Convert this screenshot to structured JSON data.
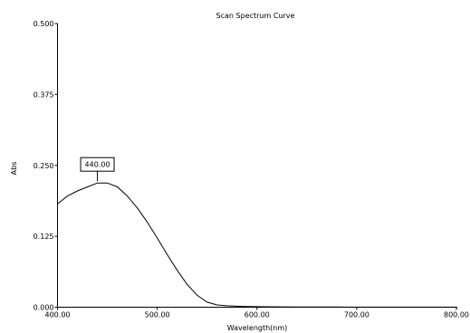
{
  "chart_data": {
    "type": "line",
    "title": "Scan Spectrum Curve",
    "xlabel": "Wavelength(nm)",
    "ylabel": "Abs",
    "xlim": [
      400,
      800
    ],
    "ylim": [
      0,
      0.5
    ],
    "x_ticks": [
      "400.00",
      "500.00",
      "600.00",
      "700.00",
      "800.00"
    ],
    "y_ticks": [
      "0.000",
      "0.125",
      "0.250",
      "0.375",
      "0.500"
    ],
    "grid": false,
    "annotation": {
      "label": "440.00",
      "x": 440,
      "y": 0.219
    },
    "series": [
      {
        "x": [
          400,
          410,
          420,
          430,
          440,
          450,
          460,
          470,
          480,
          490,
          500,
          510,
          520,
          530,
          540,
          550,
          560,
          570,
          580,
          590,
          600,
          620,
          640,
          660,
          680,
          700,
          720,
          740,
          760,
          780,
          800
        ],
        "y": [
          0.182,
          0.196,
          0.205,
          0.212,
          0.219,
          0.219,
          0.212,
          0.196,
          0.175,
          0.15,
          0.122,
          0.093,
          0.065,
          0.04,
          0.021,
          0.009,
          0.004,
          0.0025,
          0.0018,
          0.0013,
          0.001,
          0.0007,
          0.0005,
          0.0004,
          0.0003,
          0.0002,
          0.0002,
          0.0001,
          0.0001,
          0.0001,
          0.0001
        ]
      }
    ]
  }
}
